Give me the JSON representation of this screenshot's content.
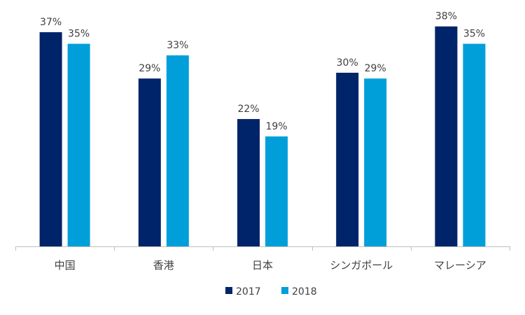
{
  "chart_data": {
    "type": "bar",
    "categories": [
      "中国",
      "香港",
      "日本",
      "シンガポール",
      "マレーシア"
    ],
    "series": [
      {
        "name": "2017",
        "values": [
          37,
          29,
          22,
          30,
          38
        ],
        "labels": [
          "37%",
          "29%",
          "22%",
          "30%",
          "38%"
        ],
        "color": "#002469"
      },
      {
        "name": "2018",
        "values": [
          35,
          33,
          19,
          29,
          35
        ],
        "labels": [
          "35%",
          "33%",
          "19%",
          "29%",
          "35%"
        ],
        "color": "#009fda"
      }
    ],
    "ylim": [
      0,
      40
    ],
    "grid": false,
    "legend_position": "bottom",
    "axis_color": "#bfbfbf"
  }
}
